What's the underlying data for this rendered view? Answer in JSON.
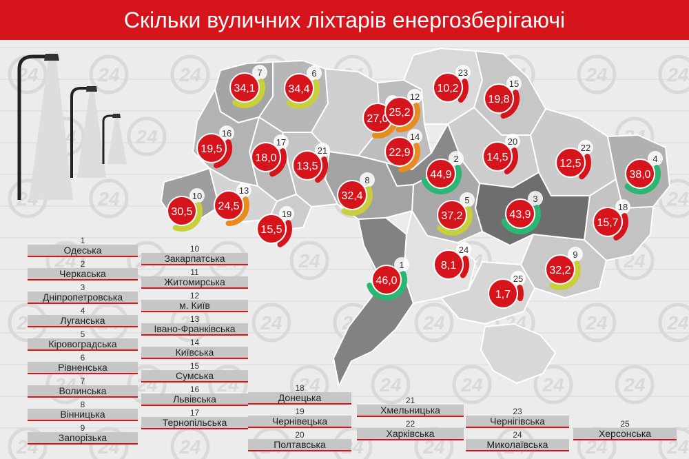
{
  "title": "Скільки вуличних ліхтарів енергозберігаючі",
  "watermark_text": "24",
  "colors": {
    "accent": "#d6141c",
    "green": "#2bb673",
    "orange": "#e98c1f",
    "yellow": "#c8cf3a"
  },
  "regions": [
    {
      "rank": "1",
      "name": "Одеська",
      "value": 46.0,
      "label": "46,0"
    },
    {
      "rank": "2",
      "name": "Черкаська",
      "value": 44.9,
      "label": "44,9"
    },
    {
      "rank": "3",
      "name": "Дніпропетровська",
      "value": 43.9,
      "label": "43,9"
    },
    {
      "rank": "4",
      "name": "Луганська",
      "value": 38.0,
      "label": "38,0"
    },
    {
      "rank": "5",
      "name": "Кіровоградська",
      "value": 37.2,
      "label": "37,2"
    },
    {
      "rank": "6",
      "name": "Рівненська",
      "value": 34.4,
      "label": "34,4"
    },
    {
      "rank": "7",
      "name": "Волинська",
      "value": 34.1,
      "label": "34,1"
    },
    {
      "rank": "8",
      "name": "Вінницька",
      "value": 32.4,
      "label": "32,4"
    },
    {
      "rank": "9",
      "name": "Запорізька",
      "value": 32.2,
      "label": "32,2"
    },
    {
      "rank": "10",
      "name": "Закарпатська",
      "value": 30.5,
      "label": "30,5"
    },
    {
      "rank": "11",
      "name": "Житомирська",
      "value": 27.0,
      "label": "27,0"
    },
    {
      "rank": "12",
      "name": "м. Київ",
      "value": 25.2,
      "label": "25,2"
    },
    {
      "rank": "13",
      "name": "Івано-Франківська",
      "value": 24.5,
      "label": "24,5"
    },
    {
      "rank": "14",
      "name": "Київська",
      "value": 22.9,
      "label": "22,9"
    },
    {
      "rank": "15",
      "name": "Сумська",
      "value": 19.8,
      "label": "19,8"
    },
    {
      "rank": "16",
      "name": "Львівська",
      "value": 19.5,
      "label": "19,5"
    },
    {
      "rank": "17",
      "name": "Тернопільська",
      "value": 18.0,
      "label": "18,0"
    },
    {
      "rank": "18",
      "name": "Донецька",
      "value": 15.7,
      "label": "15,7"
    },
    {
      "rank": "19",
      "name": "Чернівецька",
      "value": 15.5,
      "label": "15,5"
    },
    {
      "rank": "20",
      "name": "Полтавська",
      "value": 14.5,
      "label": "14,5"
    },
    {
      "rank": "21",
      "name": "Хмельницька",
      "value": 13.5,
      "label": "13,5"
    },
    {
      "rank": "22",
      "name": "Харківська",
      "value": 12.5,
      "label": "12,5"
    },
    {
      "rank": "23",
      "name": "Чернігівська",
      "value": 10.2,
      "label": "10,2"
    },
    {
      "rank": "24",
      "name": "Миколаївська",
      "value": 8.1,
      "label": "8,1"
    },
    {
      "rank": "25",
      "name": "Херсонська",
      "value": 1.7,
      "label": "1,7"
    }
  ]
}
